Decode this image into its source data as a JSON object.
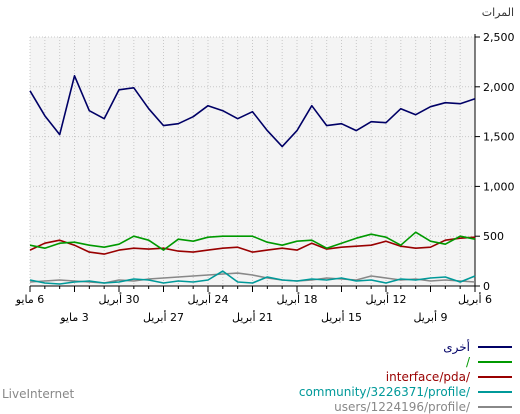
{
  "unit_label": "المرات",
  "watermark": "LiveInternet",
  "chart_data": {
    "type": "line",
    "ylim": [
      0,
      2500
    ],
    "yticks": [
      "0",
      "500",
      "1,000",
      "1,500",
      "2,000",
      "2,500"
    ],
    "grid": true,
    "x_count": 31,
    "xticks_top": [
      {
        "i": 0,
        "label": "6 مايو"
      },
      {
        "i": 6,
        "label": "30 أبريل"
      },
      {
        "i": 12,
        "label": "24 أبريل"
      },
      {
        "i": 18,
        "label": "18 أبريل"
      },
      {
        "i": 24,
        "label": "12 أبريل"
      },
      {
        "i": 30,
        "label": "6 أبريل"
      }
    ],
    "xticks_bottom": [
      {
        "i": 3,
        "label": "3 مايو"
      },
      {
        "i": 9,
        "label": "27 أبريل"
      },
      {
        "i": 15,
        "label": "21 أبريل"
      },
      {
        "i": 21,
        "label": "15 أبريل"
      },
      {
        "i": 27,
        "label": "9 أبريل"
      }
    ],
    "series": [
      {
        "name": "أخرى",
        "color": "#000066",
        "values": [
          1960,
          1710,
          1520,
          2110,
          1760,
          1680,
          1970,
          1990,
          1780,
          1610,
          1630,
          1700,
          1810,
          1760,
          1680,
          1750,
          1560,
          1400,
          1560,
          1810,
          1610,
          1630,
          1560,
          1650,
          1640,
          1780,
          1720,
          1800,
          1840,
          1830,
          1880
        ]
      },
      {
        "name": "/",
        "color": "#009900",
        "values": [
          410,
          380,
          430,
          440,
          410,
          390,
          420,
          500,
          460,
          360,
          470,
          450,
          490,
          500,
          500,
          500,
          440,
          410,
          450,
          460,
          380,
          430,
          480,
          520,
          490,
          410,
          540,
          450,
          420,
          500,
          470
        ]
      },
      {
        "name": "interface/pda/",
        "color": "#990000",
        "values": [
          360,
          430,
          460,
          410,
          340,
          320,
          360,
          380,
          370,
          380,
          350,
          340,
          360,
          380,
          390,
          340,
          360,
          380,
          360,
          430,
          370,
          390,
          400,
          410,
          450,
          400,
          380,
          390,
          460,
          480,
          490
        ]
      },
      {
        "name": "community/3226371/profile/",
        "color": "#009999",
        "values": [
          60,
          30,
          20,
          40,
          50,
          30,
          40,
          70,
          60,
          30,
          50,
          40,
          60,
          150,
          40,
          30,
          90,
          60,
          50,
          70,
          60,
          80,
          50,
          60,
          30,
          70,
          60,
          80,
          90,
          40,
          100
        ]
      },
      {
        "name": "users/1224196/profile/",
        "color": "#888888",
        "values": [
          40,
          50,
          60,
          50,
          40,
          30,
          60,
          50,
          70,
          80,
          90,
          100,
          110,
          120,
          130,
          110,
          80,
          60,
          50,
          60,
          80,
          70,
          60,
          100,
          80,
          60,
          70,
          50,
          60,
          50,
          40
        ]
      }
    ]
  }
}
